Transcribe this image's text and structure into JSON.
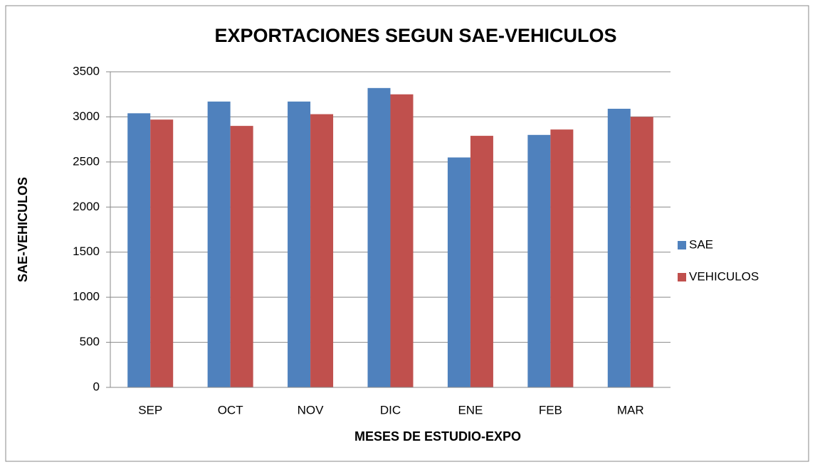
{
  "chart_data": {
    "type": "bar",
    "title": "EXPORTACIONES SEGUN SAE-VEHICULOS",
    "x_label": "MESES DE ESTUDIO-EXPO",
    "y_label": "SAE-VEHICULOS",
    "categories": [
      "SEP",
      "OCT",
      "NOV",
      "DIC",
      "ENE",
      "FEB",
      "MAR"
    ],
    "series": [
      {
        "name": "SAE",
        "color": "#4f81bd",
        "values": [
          3040,
          3170,
          3170,
          3320,
          2550,
          2800,
          3090
        ]
      },
      {
        "name": "VEHICULOS",
        "color": "#c0504d",
        "values": [
          2970,
          2900,
          3030,
          3250,
          2790,
          2860,
          3000
        ]
      }
    ],
    "ylim": [
      0,
      3500
    ],
    "yticks": [
      0,
      500,
      1000,
      1500,
      2000,
      2500,
      3000,
      3500
    ],
    "grid": true,
    "legend": "right"
  }
}
